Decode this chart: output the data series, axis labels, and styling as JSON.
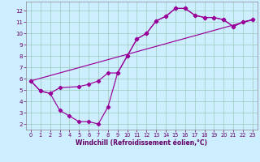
{
  "xlabel": "Windchill (Refroidissement éolien,°C)",
  "bg_color": "#cceeff",
  "line_color": "#990099",
  "grid_color": "#99ccbb",
  "xlim": [
    -0.5,
    23.5
  ],
  "ylim": [
    1.5,
    12.8
  ],
  "xticks": [
    0,
    1,
    2,
    3,
    4,
    5,
    6,
    7,
    8,
    9,
    10,
    11,
    12,
    13,
    14,
    15,
    16,
    17,
    18,
    19,
    20,
    21,
    22,
    23
  ],
  "yticks": [
    2,
    3,
    4,
    5,
    6,
    7,
    8,
    9,
    10,
    11,
    12
  ],
  "series1_x": [
    0,
    1,
    2,
    3,
    4,
    5,
    6,
    7,
    8,
    9,
    10,
    11,
    12,
    13,
    14,
    15,
    16,
    17,
    18,
    19,
    20,
    21,
    22,
    23
  ],
  "series1_y": [
    5.8,
    4.9,
    4.7,
    3.2,
    2.7,
    2.2,
    2.2,
    2.0,
    3.5,
    6.5,
    8.0,
    9.5,
    10.0,
    11.1,
    11.5,
    12.2,
    12.2,
    11.6,
    11.4,
    11.4,
    11.2,
    10.6,
    11.0,
    11.2
  ],
  "series2_x": [
    0,
    1,
    2,
    3,
    5,
    6,
    7,
    8,
    9,
    10,
    11,
    12,
    13,
    14,
    15,
    16,
    17,
    18,
    19,
    20,
    21,
    22,
    23
  ],
  "series2_y": [
    5.8,
    4.9,
    4.7,
    5.2,
    5.3,
    5.5,
    5.8,
    6.5,
    6.5,
    8.0,
    9.5,
    10.0,
    11.1,
    11.5,
    12.2,
    12.2,
    11.6,
    11.4,
    11.4,
    11.2,
    10.6,
    11.0,
    11.2
  ],
  "series3_x": [
    0,
    23
  ],
  "series3_y": [
    5.8,
    11.2
  ],
  "tick_color": "#660066",
  "xlabel_fontsize": 5.5,
  "tick_fontsize": 4.8,
  "lw": 0.85,
  "ms": 2.2
}
